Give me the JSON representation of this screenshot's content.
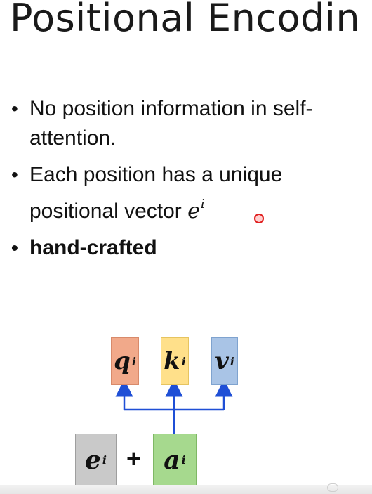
{
  "slide": {
    "title": "Positional Encodin",
    "bullets": [
      {
        "text": "No position information in self-attention."
      },
      {
        "text": "Each position has a unique positional vector ",
        "math_base": "e",
        "math_sup": "i"
      },
      {
        "text": "hand-crafted"
      }
    ]
  },
  "diagram": {
    "outputs": [
      {
        "base": "q",
        "sup": "i",
        "color": "#f1a98a"
      },
      {
        "base": "k",
        "sup": "i",
        "color": "#ffe08a"
      },
      {
        "base": "v",
        "sup": "i",
        "color": "#a9c4e6"
      }
    ],
    "inputs": [
      {
        "base": "e",
        "sup": "i",
        "color": "#c9c9c9"
      },
      {
        "base": "a",
        "sup": "i",
        "color": "#a6d98e"
      }
    ],
    "operator": "+",
    "arrow_color": "#1f4fd6"
  }
}
